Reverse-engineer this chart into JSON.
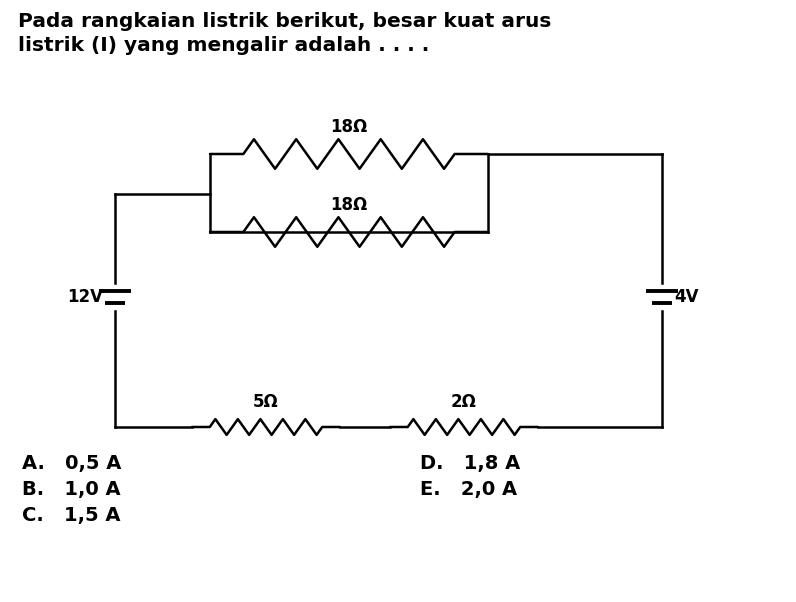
{
  "title_line1": "Pada rangkaian listrik berikut, besar kuat arus",
  "title_line2": "listrik (I) yang mengalir adalah . . . .",
  "bg_color": "#ffffff",
  "line_color": "#000000",
  "line_width": 1.8,
  "choices_left": [
    "A.   0,5 A",
    "B.   1,0 A",
    "C.   1,5 A"
  ],
  "choices_right": [
    "D.   1,8 A",
    "E.   2,0 A"
  ],
  "resistor_labels": [
    "18Ω",
    "18Ω",
    "5Ω",
    "2Ω"
  ],
  "battery_labels": [
    "12V",
    "4V"
  ]
}
